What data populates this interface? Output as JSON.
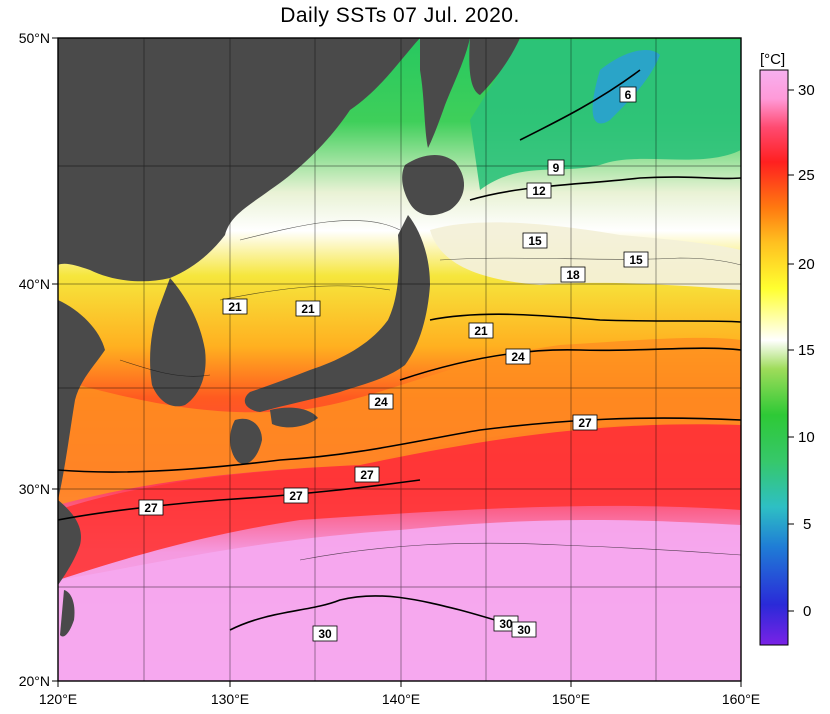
{
  "title": "Daily SSTs 07 Jul. 2020.",
  "lat_labels": [
    "50°N",
    "40°N",
    "30°N",
    "20°N"
  ],
  "lon_labels": [
    "120°E",
    "130°E",
    "140°E",
    "150°E",
    "160°E"
  ],
  "colorbar": {
    "unit": "[°C]",
    "ticks": [
      "30",
      "25",
      "20",
      "15",
      "10",
      "5",
      "0"
    ],
    "range": [
      -2,
      32
    ],
    "stops": [
      "#7a22e6",
      "#1d3ad6",
      "#1f8fd6",
      "#2ec6c4",
      "#36c86a",
      "#2ec936",
      "#7ed630",
      "#d7f09a",
      "#ffffff",
      "#ffff30",
      "#ffc020",
      "#ff7a10",
      "#ff2020",
      "#ff4a70",
      "#ff9ad8",
      "#f7b0f0"
    ]
  },
  "isotherm_labels": [
    "6",
    "9",
    "12",
    "15",
    "15",
    "18",
    "21",
    "21",
    "21",
    "24",
    "24",
    "27",
    "27",
    "27",
    "27",
    "30",
    "30",
    "30"
  ],
  "colors": {
    "land": "#4a4a4a",
    "warm_pink": "#f6a8ee",
    "red": "#ff3030",
    "orange": "#ff8c1a",
    "yellow": "#f6e23a",
    "cream": "#f2f2d2",
    "green": "#39c85a"
  }
}
